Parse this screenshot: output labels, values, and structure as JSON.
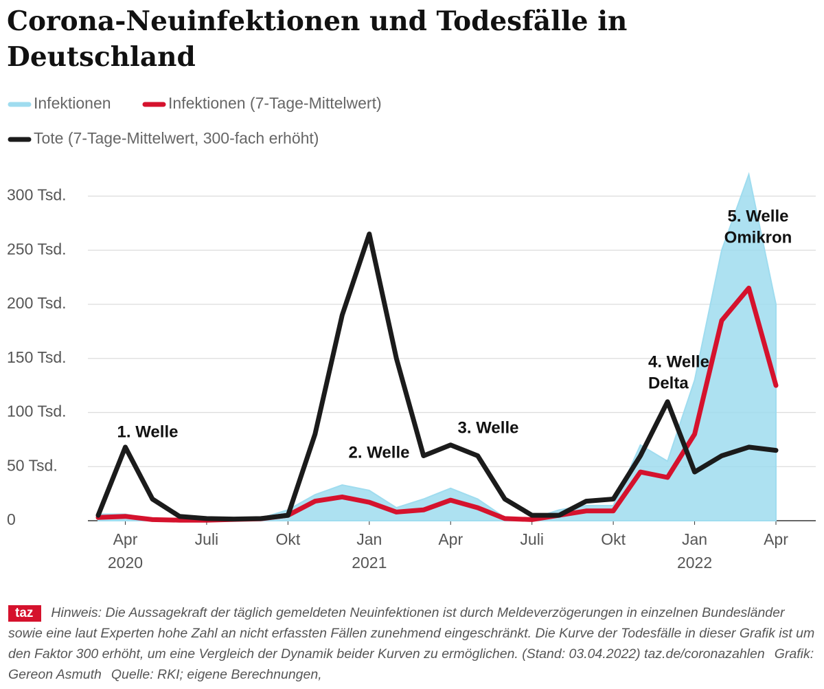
{
  "chart_data": {
    "type": "line",
    "title": "Corona-Neuinfektionen und Todesfälle in Deutschland",
    "x": [
      "2020-03",
      "2020-04",
      "2020-05",
      "2020-06",
      "2020-07",
      "2020-08",
      "2020-09",
      "2020-10",
      "2020-11",
      "2020-12",
      "2021-01",
      "2021-02",
      "2021-03",
      "2021-04",
      "2021-05",
      "2021-06",
      "2021-07",
      "2021-08",
      "2021-09",
      "2021-10",
      "2021-11",
      "2021-12",
      "2022-01",
      "2022-02",
      "2022-03",
      "2022-04"
    ],
    "series": [
      {
        "name": "Infektionen",
        "color": "#9fdcef",
        "fill": true,
        "values": [
          6000,
          6000,
          1500,
          1000,
          800,
          2000,
          2500,
          10000,
          24000,
          33000,
          28000,
          12000,
          20000,
          30000,
          20000,
          3000,
          2000,
          10000,
          14000,
          14000,
          70000,
          55000,
          130000,
          250000,
          320000,
          200000
        ]
      },
      {
        "name": "Infektionen (7-Tage-Mittelwert)",
        "color": "#d5122d",
        "values": [
          3000,
          4000,
          1000,
          500,
          500,
          1200,
          1800,
          5000,
          18000,
          22000,
          17000,
          8000,
          10000,
          19000,
          12000,
          2000,
          1000,
          5000,
          9000,
          9000,
          45000,
          40000,
          80000,
          185000,
          215000,
          125000
        ]
      },
      {
        "name": "Tote (7-Tage-Mittelwert, 300-fach erhöht)",
        "color": "#1b1b1b",
        "values": [
          5000,
          68000,
          20000,
          4000,
          2000,
          1500,
          2000,
          5000,
          80000,
          190000,
          265000,
          150000,
          60000,
          70000,
          60000,
          20000,
          5000,
          5000,
          18000,
          20000,
          60000,
          110000,
          45000,
          60000,
          68000,
          65000
        ]
      }
    ],
    "xlim": [
      "2020-03",
      "2022-04"
    ],
    "xticks": [
      {
        "value": "2020-04",
        "label": [
          "Apr",
          "2020"
        ]
      },
      {
        "value": "2020-07",
        "label": [
          "Juli"
        ]
      },
      {
        "value": "2020-10",
        "label": [
          "Okt"
        ]
      },
      {
        "value": "2021-01",
        "label": [
          "Jan",
          "2021"
        ]
      },
      {
        "value": "2021-04",
        "label": [
          "Apr"
        ]
      },
      {
        "value": "2021-07",
        "label": [
          "Juli"
        ]
      },
      {
        "value": "2021-10",
        "label": [
          "Okt"
        ]
      },
      {
        "value": "2022-01",
        "label": [
          "Jan",
          "2022"
        ]
      },
      {
        "value": "2022-04",
        "label": [
          "Apr"
        ]
      }
    ],
    "ylim": [
      0,
      320000
    ],
    "yticks": [
      0,
      {
        "value": 50000,
        "label": "50 Tsd."
      },
      {
        "value": 100000,
        "label": "100 Tsd."
      },
      {
        "value": 150000,
        "label": "150 Tsd."
      },
      {
        "value": 200000,
        "label": "200 Tsd."
      },
      {
        "value": 250000,
        "label": "250 Tsd."
      },
      {
        "value": 300000,
        "label": "300 Tsd."
      }
    ],
    "grid": true,
    "annotations": [
      [
        "1. Welle"
      ],
      [
        "2. Welle"
      ],
      [
        "3. Welle"
      ],
      [
        "4. Welle",
        "Delta"
      ],
      [
        "5. Welle",
        "Omikron"
      ]
    ]
  },
  "footer": {
    "logo": "taz",
    "note": "Hinweis: Die Aussagekraft der täglich gemeldeten Neuinfektionen ist durch Meldeverzögerungen in einzelnen Bundesländer sowie eine laut Experten hohe Zahl an nicht erfassten Fällen zunehmend eingeschränkt. Die Kurve der Todesfälle in dieser Grafik ist um den Faktor 300 erhöht, um eine Vergleich der Dynamik beider Kurven zu ermöglichen.",
    "stand": "(Stand: 03.04.2022) taz.de/coronazahlen",
    "credit": "Grafik: Gereon Asmuth",
    "source": "Quelle: RKI; eigene Berechnungen,"
  }
}
